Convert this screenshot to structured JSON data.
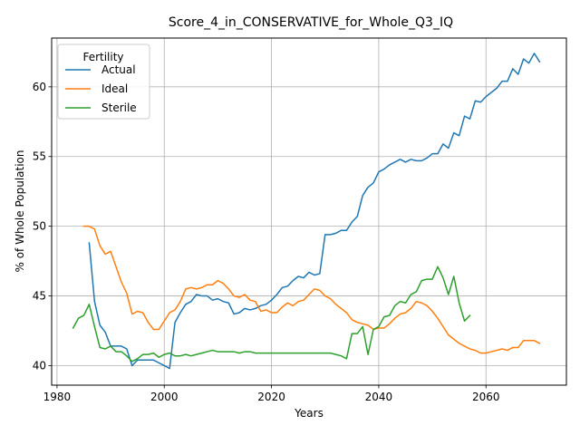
{
  "chart_data": {
    "type": "line",
    "title": "Score_4_in_CONSERVATIVE_for_Whole_Q3_IQ",
    "xlabel": "Years",
    "ylabel": "% of Whole Population",
    "xlim": [
      1979,
      2075
    ],
    "ylim": [
      38.6,
      63.5
    ],
    "xticks": [
      1980,
      2000,
      2020,
      2040,
      2060
    ],
    "yticks": [
      40,
      45,
      50,
      55,
      60
    ],
    "grid": true,
    "legend": {
      "title": "Fertility",
      "placement": "top-left"
    },
    "series": [
      {
        "name": "Actual",
        "color": "#1f77b4",
        "x": [
          1986,
          1987,
          1988,
          1989,
          1990,
          1991,
          1992,
          1993,
          1994,
          1995,
          1996,
          1997,
          1998,
          1999,
          2000,
          2001,
          2002,
          2003,
          2004,
          2005,
          2006,
          2007,
          2008,
          2009,
          2010,
          2011,
          2012,
          2013,
          2014,
          2015,
          2016,
          2017,
          2018,
          2019,
          2020,
          2021,
          2022,
          2023,
          2024,
          2025,
          2026,
          2027,
          2028,
          2029,
          2030,
          2031,
          2032,
          2033,
          2034,
          2035,
          2036,
          2037,
          2038,
          2039,
          2040,
          2041,
          2042,
          2043,
          2044,
          2045,
          2046,
          2047,
          2048,
          2049,
          2050,
          2051,
          2052,
          2053,
          2054,
          2055,
          2056,
          2057,
          2058,
          2059,
          2060,
          2061,
          2062,
          2063,
          2064,
          2065,
          2066,
          2067,
          2068,
          2069,
          2070
        ],
        "y": [
          48.8,
          44.6,
          42.9,
          42.4,
          41.4,
          41.4,
          41.4,
          41.2,
          40.0,
          40.4,
          40.4,
          40.4,
          40.4,
          40.2,
          40.0,
          39.8,
          43.1,
          43.8,
          44.4,
          44.6,
          45.1,
          45.0,
          45.0,
          44.7,
          44.8,
          44.6,
          44.5,
          43.7,
          43.8,
          44.1,
          44.0,
          44.1,
          44.3,
          44.4,
          44.7,
          45.1,
          45.6,
          45.7,
          46.1,
          46.4,
          46.3,
          46.7,
          46.5,
          46.6,
          49.4,
          49.4,
          49.5,
          49.7,
          49.7,
          50.3,
          50.7,
          52.2,
          52.8,
          53.1,
          53.9,
          54.1,
          54.4,
          54.6,
          54.8,
          54.6,
          54.8,
          54.7,
          54.7,
          54.9,
          55.2,
          55.2,
          55.9,
          55.6,
          56.7,
          56.5,
          57.9,
          57.7,
          59.0,
          58.9,
          59.3,
          59.6,
          59.9,
          60.4,
          60.4,
          61.3,
          60.9,
          62.0,
          61.7,
          62.4,
          61.8
        ]
      },
      {
        "name": "Ideal",
        "color": "#ff7f0e",
        "x": [
          1985,
          1986,
          1987,
          1988,
          1989,
          1990,
          1991,
          1992,
          1993,
          1994,
          1995,
          1996,
          1997,
          1998,
          1999,
          2000,
          2001,
          2002,
          2003,
          2004,
          2005,
          2006,
          2007,
          2008,
          2009,
          2010,
          2011,
          2012,
          2013,
          2014,
          2015,
          2016,
          2017,
          2018,
          2019,
          2020,
          2021,
          2022,
          2023,
          2024,
          2025,
          2026,
          2027,
          2028,
          2029,
          2030,
          2031,
          2032,
          2033,
          2034,
          2035,
          2036,
          2037,
          2038,
          2039,
          2040,
          2041,
          2042,
          2043,
          2044,
          2045,
          2046,
          2047,
          2048,
          2049,
          2050,
          2051,
          2052,
          2053,
          2054,
          2055,
          2056,
          2057,
          2058,
          2059,
          2060,
          2061,
          2062,
          2063,
          2064,
          2065,
          2066,
          2067,
          2068,
          2069,
          2070
        ],
        "y": [
          50.0,
          50.0,
          49.8,
          48.6,
          48.0,
          48.2,
          47.1,
          46.0,
          45.2,
          43.7,
          43.9,
          43.8,
          43.1,
          42.6,
          42.6,
          43.2,
          43.8,
          44.0,
          44.6,
          45.5,
          45.6,
          45.5,
          45.6,
          45.8,
          45.8,
          46.1,
          45.9,
          45.5,
          45.0,
          44.9,
          45.1,
          44.7,
          44.6,
          43.9,
          44.0,
          43.8,
          43.8,
          44.2,
          44.5,
          44.3,
          44.6,
          44.7,
          45.1,
          45.5,
          45.4,
          45.0,
          44.8,
          44.4,
          44.1,
          43.8,
          43.3,
          43.1,
          43.0,
          42.9,
          42.6,
          42.7,
          42.7,
          43.0,
          43.4,
          43.7,
          43.8,
          44.1,
          44.6,
          44.5,
          44.3,
          43.9,
          43.4,
          42.8,
          42.2,
          41.9,
          41.6,
          41.4,
          41.2,
          41.1,
          40.9,
          40.9,
          41.0,
          41.1,
          41.2,
          41.1,
          41.3,
          41.3,
          41.8,
          41.8,
          41.8,
          41.6
        ]
      },
      {
        "name": "Sterile",
        "color": "#2ca02c",
        "x": [
          1983,
          1984,
          1985,
          1986,
          1987,
          1988,
          1989,
          1990,
          1991,
          1992,
          1993,
          1994,
          1995,
          1996,
          1997,
          1998,
          1999,
          2000,
          2001,
          2002,
          2003,
          2004,
          2005,
          2006,
          2007,
          2008,
          2009,
          2010,
          2011,
          2012,
          2013,
          2014,
          2015,
          2016,
          2017,
          2018,
          2019,
          2020,
          2021,
          2022,
          2023,
          2024,
          2025,
          2026,
          2027,
          2028,
          2029,
          2030,
          2031,
          2032,
          2033,
          2034,
          2035,
          2036,
          2037,
          2038,
          2039,
          2040,
          2041,
          2042,
          2043,
          2044,
          2045,
          2046,
          2047,
          2048,
          2049,
          2050,
          2051,
          2052,
          2053,
          2054,
          2055,
          2056,
          2057
        ],
        "y": [
          42.7,
          43.4,
          43.6,
          44.4,
          42.8,
          41.3,
          41.2,
          41.4,
          41.0,
          41.0,
          40.7,
          40.3,
          40.5,
          40.8,
          40.8,
          40.9,
          40.6,
          40.8,
          40.9,
          40.7,
          40.7,
          40.8,
          40.7,
          40.8,
          40.9,
          41.0,
          41.1,
          41.0,
          41.0,
          41.0,
          41.0,
          40.9,
          41.0,
          41.0,
          40.9,
          40.9,
          40.9,
          40.9,
          40.9,
          40.9,
          40.9,
          40.9,
          40.9,
          40.9,
          40.9,
          40.9,
          40.9,
          40.9,
          40.9,
          40.8,
          40.7,
          40.5,
          42.3,
          42.3,
          42.8,
          40.8,
          42.6,
          42.8,
          43.5,
          43.6,
          44.3,
          44.6,
          44.5,
          45.1,
          45.3,
          46.1,
          46.2,
          46.2,
          47.1,
          46.3,
          45.1,
          46.4,
          44.5,
          43.2,
          43.6
        ]
      }
    ]
  }
}
